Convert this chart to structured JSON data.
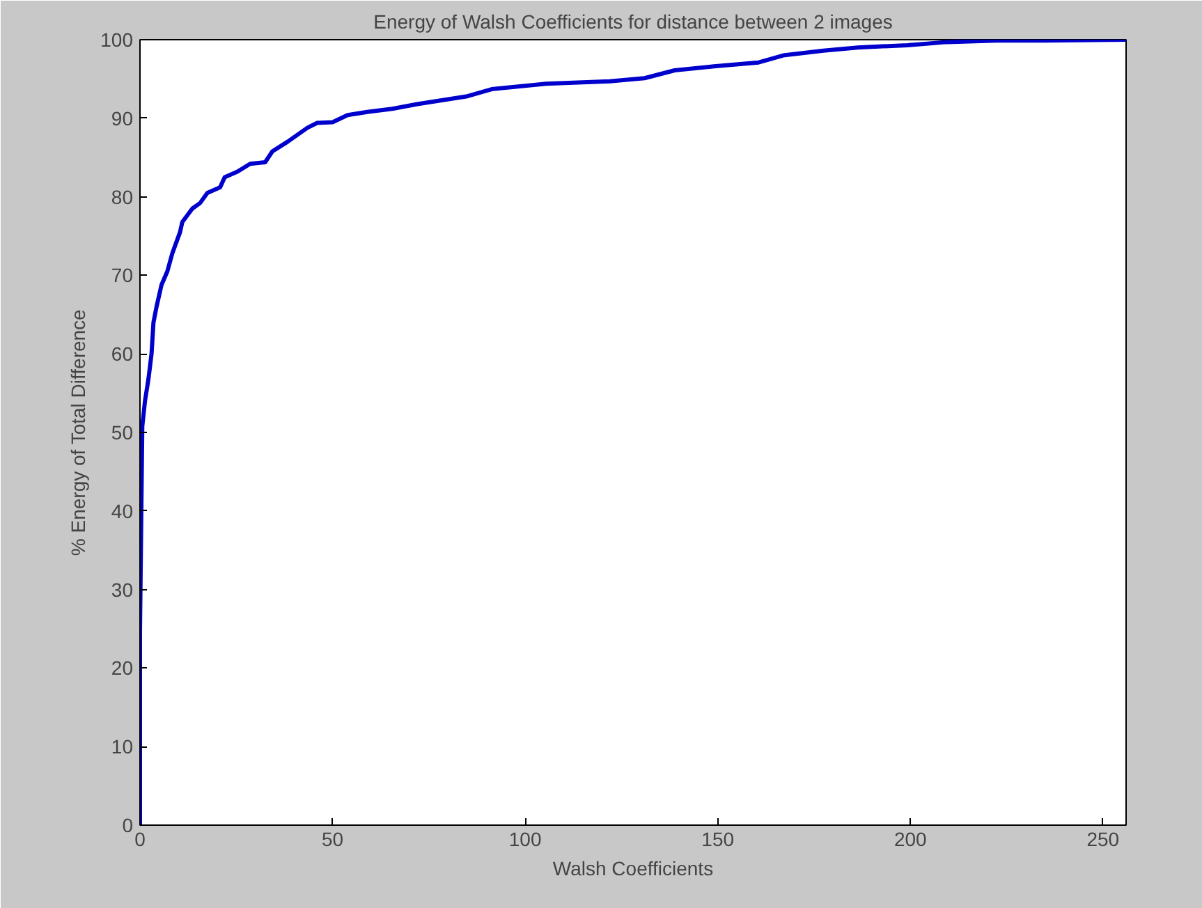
{
  "chart_data": {
    "type": "line",
    "title": "Energy of Walsh Coefficients for distance between 2 images",
    "xlabel": "Walsh Coefficients",
    "ylabel": "% Energy of Total Difference",
    "x": [
      0,
      0,
      0.6,
      1.3,
      2.2,
      3,
      3.5,
      4.3,
      5.6,
      7.1,
      8.4,
      10.4,
      11,
      13.6,
      15.6,
      17.5,
      20.8,
      22,
      25.3,
      28.6,
      32.5,
      34.4,
      38.3,
      43.5,
      46,
      50,
      53.9,
      59,
      65.5,
      72,
      85,
      91.3,
      105.4,
      122,
      131,
      138.8,
      149,
      160.6,
      167,
      177.4,
      186.4,
      199.2,
      209.5,
      222.4,
      235,
      256
    ],
    "series": [
      {
        "color": "#0000cc",
        "values": [
          0,
          24.7,
          50.8,
          54,
          56.8,
          60,
          64,
          66,
          68.8,
          70.5,
          72.8,
          75.5,
          76.8,
          78.5,
          79.2,
          80.5,
          81.2,
          82.5,
          83.2,
          84.2,
          84.4,
          85.8,
          87,
          88.8,
          89.4,
          89.5,
          90.4,
          90.8,
          91.2,
          91.8,
          92.8,
          93.7,
          94.4,
          94.7,
          95.1,
          96.1,
          96.6,
          97.1,
          98,
          98.6,
          99,
          99.3,
          99.7,
          99.9,
          99.9,
          100
        ]
      }
    ],
    "xlim": [
      0,
      256
    ],
    "xticks": [
      0,
      50,
      100,
      150,
      200,
      250
    ],
    "ylim": [
      0,
      100
    ],
    "yticks": [
      0,
      10,
      20,
      30,
      40,
      50,
      60,
      70,
      80,
      90,
      100
    ],
    "grid": false,
    "line_style": "solid",
    "marker": "none"
  }
}
